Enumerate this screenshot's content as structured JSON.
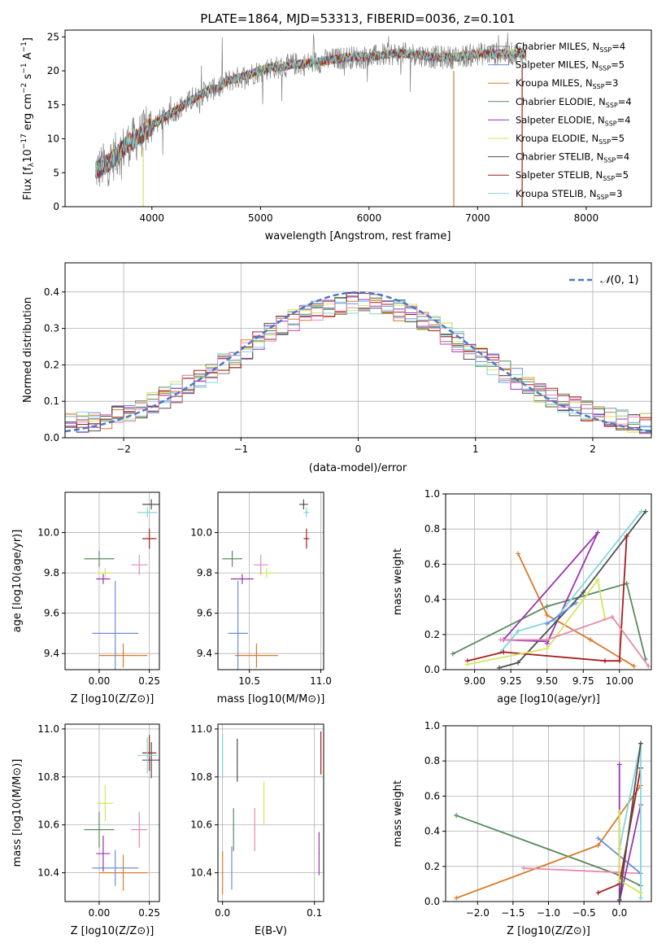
{
  "colors": {
    "chabrier_miles": "#7f7f7f",
    "salpeter_miles": "#6b8fd6",
    "kroupa_miles": "#d97a28",
    "chabrier_elodie": "#5a8a5e",
    "salpeter_elodie": "#9a35b0",
    "kroupa_elodie": "#d4e65a",
    "chabrier_stelib": "#505050",
    "salpeter_stelib": "#a81c1c",
    "kroupa_stelib": "#7fd6df",
    "normal": "#4a78c8"
  },
  "chart_data": [
    {
      "type": "line",
      "title": "PLATE=1864, MJD=53313, FIBERID=0036, z=0.101",
      "xlabel": "wavelength [Angstrom, rest frame]",
      "ylabel": "Flux [fλ10⁻¹⁷ erg cm⁻² s⁻¹ A⁻¹]",
      "xlim": [
        3200,
        8600
      ],
      "ylim": [
        0,
        26
      ],
      "xticks": [
        "4000",
        "5000",
        "6000",
        "7000",
        "8000"
      ],
      "yticks": [
        "0",
        "5",
        "10",
        "15",
        "20",
        "25"
      ],
      "legend_position": "right",
      "series": [
        {
          "name": "Chabrier MILES, NSSP=4",
          "label": "Chabrier MILES, N",
          "sub": "SSP",
          "tail": "=4",
          "color_key": "chabrier_miles"
        },
        {
          "name": "Salpeter MILES, NSSP=5",
          "label": "Salpeter MILES, N",
          "sub": "SSP",
          "tail": "=5",
          "color_key": "salpeter_miles"
        },
        {
          "name": "Kroupa MILES, NSSP=3",
          "label": "Kroupa MILES, N",
          "sub": "SSP",
          "tail": "=3",
          "color_key": "kroupa_miles"
        },
        {
          "name": "Chabrier ELODIE, NSSP=4",
          "label": "Chabrier ELODIE, N",
          "sub": "SSP",
          "tail": "=4",
          "color_key": "chabrier_elodie"
        },
        {
          "name": "Salpeter ELODIE, NSSP=4",
          "label": "Salpeter ELODIE, N",
          "sub": "SSP",
          "tail": "=4",
          "color_key": "salpeter_elodie"
        },
        {
          "name": "Kroupa ELODIE, NSSP=5",
          "label": "Kroupa ELODIE, N",
          "sub": "SSP",
          "tail": "=5",
          "color_key": "kroupa_elodie"
        },
        {
          "name": "Chabrier STELIB, NSSP=4",
          "label": "Chabrier STELIB, N",
          "sub": "SSP",
          "tail": "=4",
          "color_key": "chabrier_stelib"
        },
        {
          "name": "Salpeter STELIB, NSSP=5",
          "label": "Salpeter STELIB, N",
          "sub": "SSP",
          "tail": "=5",
          "color_key": "salpeter_stelib"
        },
        {
          "name": "Kroupa STELIB, NSSP=3",
          "label": "Kroupa STELIB, N",
          "sub": "SSP",
          "tail": "=3",
          "color_key": "kroupa_stelib"
        }
      ],
      "continuum": {
        "x": [
          3500,
          3600,
          3700,
          3800,
          3900,
          4000,
          4100,
          4200,
          4300,
          4400,
          4500,
          4600,
          4700,
          4800,
          4900,
          5000,
          5100,
          5200,
          5300,
          5400,
          5600,
          5800,
          6000,
          6200,
          6400,
          6600,
          6800,
          7000,
          7200,
          7400
        ],
        "y": [
          5.5,
          6.5,
          8,
          9.5,
          10.5,
          12,
          13,
          14,
          15,
          16,
          17,
          17.5,
          18.5,
          19,
          19.5,
          20,
          20.5,
          20.5,
          21,
          21,
          21.5,
          22,
          22,
          22.5,
          22.5,
          22,
          22,
          22.5,
          22.5,
          22.5
        ]
      },
      "dropouts": [
        3920,
        6780,
        7410
      ]
    },
    {
      "type": "line",
      "xlabel": "(data-model)/error",
      "ylabel": "Normed distribution",
      "xlim": [
        -2.5,
        2.5
      ],
      "ylim": [
        0,
        0.48
      ],
      "xticks": [
        "−2",
        "−1",
        "0",
        "1",
        "2"
      ],
      "yticks": [
        "0.0",
        "0.1",
        "0.2",
        "0.3",
        "0.4"
      ],
      "legend": "N(0,1)",
      "legend_position": "top-right",
      "bin_width": 0.1
    },
    {
      "type": "scatter",
      "xlabel": "Z [log10(Z/Z⊙)]",
      "ylabel": "age  [log10(age/yr)]",
      "xlim": [
        -0.17,
        0.3
      ],
      "ylim": [
        9.32,
        10.2
      ],
      "xticks": [
        "0.00",
        "0.25"
      ],
      "yticks": [
        "9.4",
        "9.6",
        "9.8",
        "10.0"
      ],
      "points": [
        {
          "c": "kroupa_miles",
          "x": 0.12,
          "xe": 0.24,
          "y": 9.39,
          "ye": 0.12
        },
        {
          "c": "salpeter_miles",
          "x": 0.08,
          "xe": 0.23,
          "y": 9.5,
          "ye": 0.52
        },
        {
          "c": "chabrier_elodie",
          "x": 0.0,
          "xe": 0.15,
          "y": 9.87,
          "ye": 0.08
        },
        {
          "c": "salpeter_elodie",
          "x": 0.02,
          "xe": 0.07,
          "y": 9.77,
          "ye": 0.05
        },
        {
          "c": "kroupa_elodie",
          "x": 0.03,
          "xe": 0.08,
          "y": 9.8,
          "ye": 0.05
        },
        {
          "c": "salpeter_miles_pink",
          "x": 0.2,
          "xe": 0.08,
          "y": 9.84,
          "ye": 0.1
        },
        {
          "c": "salpeter_stelib",
          "x": 0.25,
          "xe": 0.07,
          "y": 9.97,
          "ye": 0.1
        },
        {
          "c": "chabrier_stelib",
          "x": 0.26,
          "xe": 0.09,
          "y": 10.14,
          "ye": 0.05
        },
        {
          "c": "kroupa_stelib",
          "x": 0.24,
          "xe": 0.1,
          "y": 10.1,
          "ye": 0.05
        }
      ]
    },
    {
      "type": "scatter",
      "xlabel": "mass [log10(M/M⊙)]",
      "xlim": [
        10.28,
        11.02
      ],
      "ylim": [
        9.32,
        10.2
      ],
      "xticks": [
        "10.5",
        "11.0"
      ],
      "yticks": [
        "9.4",
        "9.6",
        "9.8",
        "10.0"
      ]
    },
    {
      "type": "line",
      "xlabel": "age  [log10(age/yr)]",
      "ylabel": "mass weight",
      "xlim": [
        8.8,
        10.22
      ],
      "ylim": [
        0,
        1
      ],
      "xticks": [
        "9.00",
        "9.25",
        "9.50",
        "9.75",
        "10.00"
      ],
      "yticks": [
        "0.0",
        "0.2",
        "0.4",
        "0.6",
        "0.8",
        "1.0"
      ]
    },
    {
      "type": "scatter",
      "xlabel": "Z [log10(Z/Z⊙)]",
      "ylabel": "mass [log10(M/M⊙)]",
      "xlim": [
        -0.17,
        0.3
      ],
      "ylim": [
        10.28,
        11.02
      ],
      "xticks": [
        "0.00",
        "0.25"
      ],
      "yticks": [
        "10.4",
        "10.6",
        "10.8",
        "11.0"
      ]
    },
    {
      "type": "scatter",
      "xlabel": "E(B-V)",
      "xlim": [
        -0.005,
        0.11
      ],
      "ylim": [
        10.28,
        11.02
      ],
      "xticks": [
        "0.0",
        "0.1"
      ],
      "yticks": [
        "10.4",
        "10.6",
        "10.8",
        "11.0"
      ]
    },
    {
      "type": "line",
      "xlabel": "Z [log10(Z/Z⊙)]",
      "ylabel": "mass weight",
      "xlim": [
        -2.45,
        0.45
      ],
      "ylim": [
        0,
        1
      ],
      "xticks": [
        "−2.0",
        "−1.5",
        "−1.0",
        "−0.5",
        "0.0"
      ],
      "yticks": [
        "0.0",
        "0.2",
        "0.4",
        "0.6",
        "0.8",
        "1.0"
      ]
    }
  ]
}
